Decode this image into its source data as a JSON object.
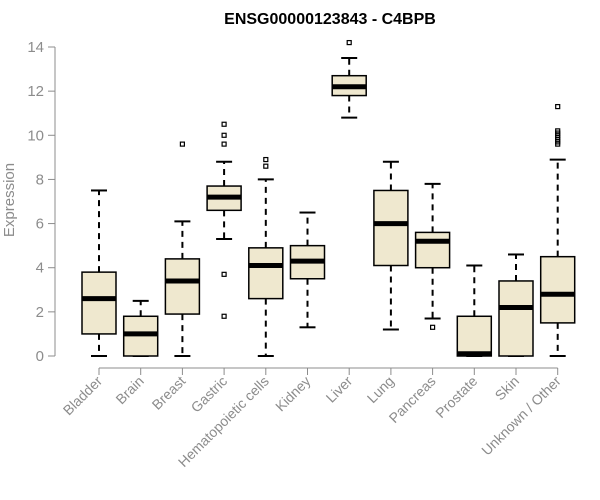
{
  "chart_data": {
    "type": "box",
    "title": "ENSG00000123843 - C4BPB",
    "xlabel": "",
    "ylabel": "Expression",
    "ylim": [
      0,
      14.4
    ],
    "yticks": [
      0,
      2,
      4,
      6,
      8,
      10,
      12,
      14
    ],
    "grid": false,
    "colors": {
      "box_fill": "#efe8cf",
      "box_stroke": "#000000",
      "axis": "#8c8c8c"
    },
    "categories": [
      "Bladder",
      "Brain",
      "Breast",
      "Gastric",
      "Hematopoietic cells",
      "Kidney",
      "Liver",
      "Lung",
      "Pancreas",
      "Prostate",
      "Skin",
      "Unknown / Other"
    ],
    "boxes": [
      {
        "category": "Bladder",
        "whisker_low": 0.0,
        "q1": 1.0,
        "median": 2.6,
        "q3": 3.8,
        "whisker_high": 7.5,
        "outliers": []
      },
      {
        "category": "Brain",
        "whisker_low": 0.0,
        "q1": 0.0,
        "median": 1.0,
        "q3": 1.8,
        "whisker_high": 2.5,
        "outliers": []
      },
      {
        "category": "Breast",
        "whisker_low": 0.0,
        "q1": 1.9,
        "median": 3.4,
        "q3": 4.4,
        "whisker_high": 6.1,
        "outliers": [
          9.6
        ]
      },
      {
        "category": "Gastric",
        "whisker_low": 5.3,
        "q1": 6.6,
        "median": 7.2,
        "q3": 7.7,
        "whisker_high": 8.8,
        "outliers": [
          1.8,
          3.7,
          9.6,
          10.0,
          10.5
        ]
      },
      {
        "category": "Hematopoietic cells",
        "whisker_low": 0.0,
        "q1": 2.6,
        "median": 4.1,
        "q3": 4.9,
        "whisker_high": 8.0,
        "outliers": [
          8.6,
          8.9
        ]
      },
      {
        "category": "Kidney",
        "whisker_low": 1.3,
        "q1": 3.5,
        "median": 4.3,
        "q3": 5.0,
        "whisker_high": 6.5,
        "outliers": []
      },
      {
        "category": "Liver",
        "whisker_low": 10.8,
        "q1": 11.8,
        "median": 12.2,
        "q3": 12.7,
        "whisker_high": 13.5,
        "outliers": [
          14.2
        ]
      },
      {
        "category": "Lung",
        "whisker_low": 1.2,
        "q1": 4.1,
        "median": 6.0,
        "q3": 7.5,
        "whisker_high": 8.8,
        "outliers": []
      },
      {
        "category": "Pancreas",
        "whisker_low": 1.7,
        "q1": 4.0,
        "median": 5.2,
        "q3": 5.6,
        "whisker_high": 7.8,
        "outliers": [
          1.3
        ]
      },
      {
        "category": "Prostate",
        "whisker_low": 0.0,
        "q1": 0.0,
        "median": 0.1,
        "q3": 1.8,
        "whisker_high": 4.1,
        "outliers": []
      },
      {
        "category": "Skin",
        "whisker_low": 0.0,
        "q1": 0.0,
        "median": 2.2,
        "q3": 3.4,
        "whisker_high": 4.6,
        "outliers": []
      },
      {
        "category": "Unknown / Other",
        "whisker_low": 0.0,
        "q1": 1.5,
        "median": 2.8,
        "q3": 4.5,
        "whisker_high": 8.9,
        "outliers": [
          9.6,
          9.7,
          9.8,
          9.9,
          10.0,
          10.1,
          10.2,
          11.3
        ]
      }
    ]
  }
}
